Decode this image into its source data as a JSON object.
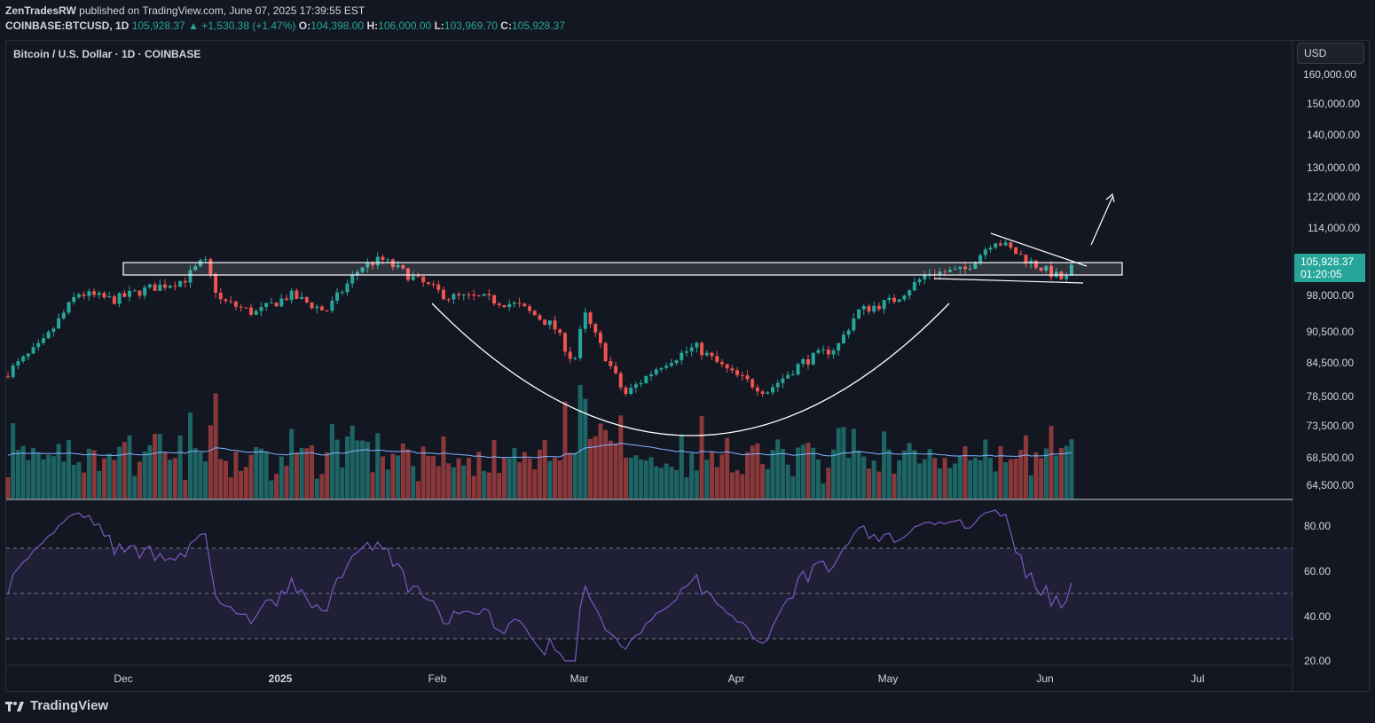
{
  "header": {
    "author": "ZenTradesRW",
    "published": "published on TradingView.com, June 07, 2025 17:39:55 EST",
    "symbol": "COINBASE:BTCUSD, 1D",
    "last": "105,928.37",
    "change": "▲ +1,530.38 (+1.47%)",
    "o_label": "O:",
    "o": "104,398.00",
    "h_label": "H:",
    "h": "106,000.00",
    "l_label": "L:",
    "l": "103,969.70",
    "c_label": "C:",
    "c": "105,928.37"
  },
  "chart_title": "Bitcoin / U.S. Dollar · 1D · COINBASE",
  "currency_button": "USD",
  "price_badge": {
    "value": "105,928.37",
    "countdown": "01:20:05"
  },
  "branding": "TradingView",
  "colors": {
    "bg": "#131722",
    "up": "#26a69a",
    "down": "#ef5350",
    "rsi": "#7e57c2",
    "badge": "#26a69a"
  },
  "chart_data": {
    "type": "candlestick",
    "title": "Bitcoin / U.S. Dollar · 1D · COINBASE",
    "price_axis_ticks": [
      "160,000.00",
      "150,000.00",
      "140,000.00",
      "130,000.00",
      "122,000.00",
      "114,000.00",
      "98,000.00",
      "90,500.00",
      "84,500.00",
      "78,500.00",
      "73,500.00",
      "68,500.00",
      "64,500.00"
    ],
    "price_scale": "log",
    "time_axis_ticks": [
      "Dec",
      "2025",
      "Feb",
      "Mar",
      "Apr",
      "May",
      "Jun",
      "Jul"
    ],
    "rsi_ticks": [
      "80.00",
      "60.00",
      "40.00",
      "20.00"
    ],
    "rsi_band": [
      30,
      70
    ],
    "close_series": [
      {
        "date": "2024-11-15",
        "close": 88000
      },
      {
        "date": "2024-11-22",
        "close": 98500
      },
      {
        "date": "2024-11-29",
        "close": 97000
      },
      {
        "date": "2024-12-06",
        "close": 99500
      },
      {
        "date": "2024-12-13",
        "close": 101400
      },
      {
        "date": "2024-12-17",
        "close": 106000
      },
      {
        "date": "2024-12-20",
        "close": 97000
      },
      {
        "date": "2024-12-27",
        "close": 94200
      },
      {
        "date": "2025-01-03",
        "close": 98100
      },
      {
        "date": "2025-01-10",
        "close": 94600
      },
      {
        "date": "2025-01-17",
        "close": 104500
      },
      {
        "date": "2025-01-21",
        "close": 106100
      },
      {
        "date": "2025-01-27",
        "close": 102000
      },
      {
        "date": "2025-02-03",
        "close": 97700
      },
      {
        "date": "2025-02-10",
        "close": 97400
      },
      {
        "date": "2025-02-17",
        "close": 95800
      },
      {
        "date": "2025-02-24",
        "close": 91500
      },
      {
        "date": "2025-02-28",
        "close": 84300
      },
      {
        "date": "2025-03-02",
        "close": 94200
      },
      {
        "date": "2025-03-10",
        "close": 78600
      },
      {
        "date": "2025-03-17",
        "close": 84000
      },
      {
        "date": "2025-03-24",
        "close": 87500
      },
      {
        "date": "2025-03-31",
        "close": 82500
      },
      {
        "date": "2025-04-07",
        "close": 79200
      },
      {
        "date": "2025-04-14",
        "close": 84500
      },
      {
        "date": "2025-04-21",
        "close": 87500
      },
      {
        "date": "2025-04-25",
        "close": 94600
      },
      {
        "date": "2025-05-02",
        "close": 96900
      },
      {
        "date": "2025-05-09",
        "close": 103000
      },
      {
        "date": "2025-05-16",
        "close": 103500
      },
      {
        "date": "2025-05-22",
        "close": 111000
      },
      {
        "date": "2025-05-29",
        "close": 105600
      },
      {
        "date": "2025-06-05",
        "close": 101200
      },
      {
        "date": "2025-06-07",
        "close": 105928.37
      }
    ],
    "annotations": [
      "resistance rectangle",
      "cup curve",
      "descending flag",
      "breakout arrow"
    ]
  }
}
